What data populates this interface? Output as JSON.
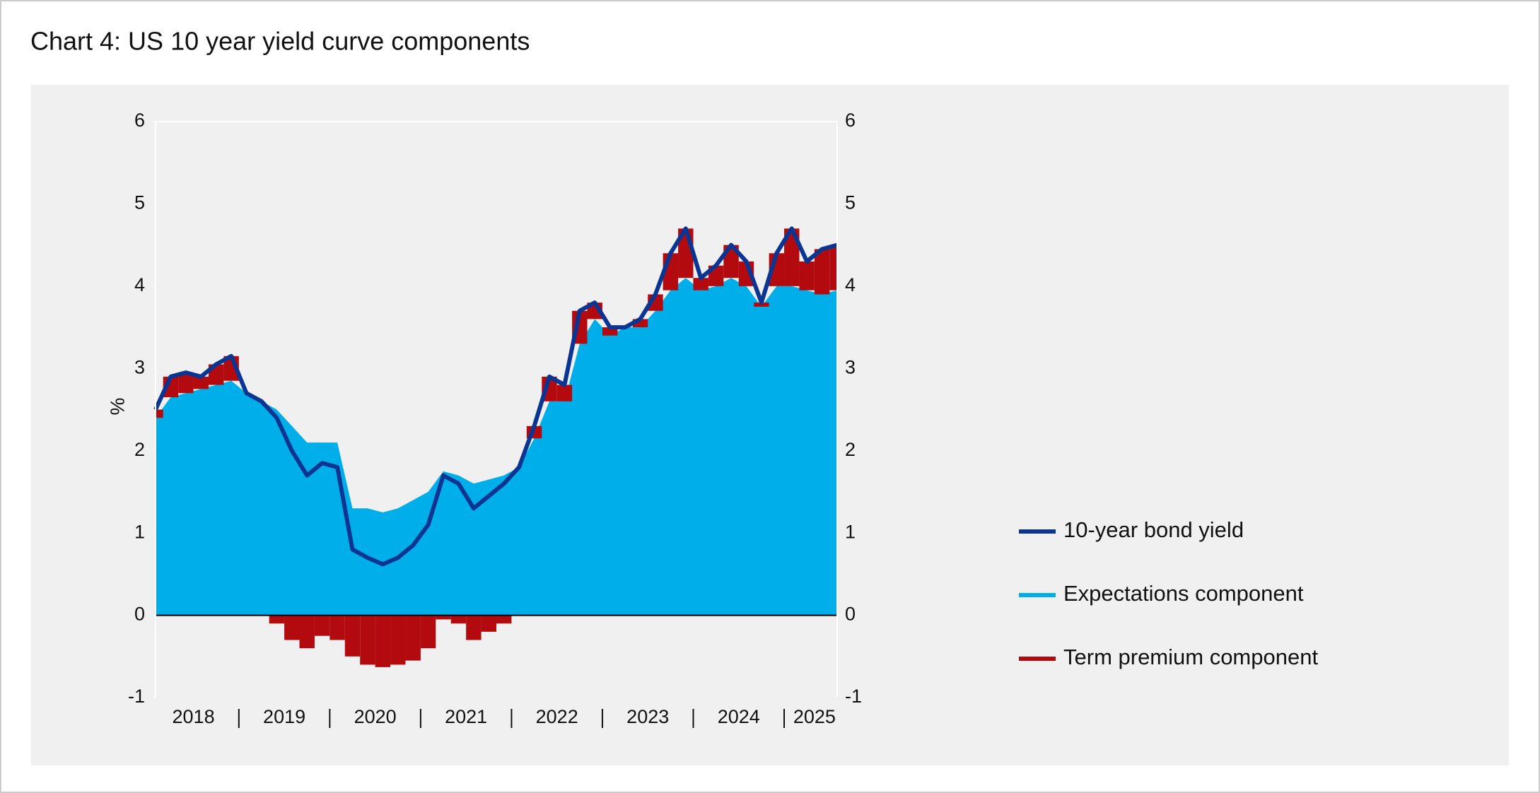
{
  "chart_data": {
    "type": "area",
    "title": "Chart 4: US 10 year yield curve components",
    "y_label": "%",
    "categories": [
      null,
      null,
      null,
      "2018",
      null,
      null,
      null,
      null,
      null,
      "2019",
      null,
      null,
      null,
      null,
      null,
      "2020",
      null,
      null,
      null,
      null,
      null,
      "2021",
      null,
      null,
      null,
      null,
      null,
      "2022",
      null,
      null,
      null,
      null,
      null,
      "2023",
      null,
      null,
      null,
      null,
      null,
      "2024",
      null,
      null,
      null,
      null,
      "2025",
      null
    ],
    "ylim": [
      -1,
      6
    ],
    "yticks": [
      -1,
      0,
      1,
      2,
      3,
      4,
      5,
      6
    ],
    "grid": false,
    "legend": "right",
    "series": [
      {
        "name": "10-year bond yield",
        "type": "line",
        "color": "#0a3592",
        "values": [
          2.5,
          2.9,
          2.95,
          2.9,
          3.05,
          3.15,
          2.7,
          2.6,
          2.4,
          2.0,
          1.7,
          1.85,
          1.8,
          0.8,
          0.7,
          0.62,
          0.7,
          0.85,
          1.1,
          1.7,
          1.6,
          1.3,
          1.45,
          1.6,
          1.8,
          2.3,
          2.9,
          2.8,
          3.7,
          3.8,
          3.5,
          3.5,
          3.6,
          3.9,
          4.4,
          4.7,
          4.1,
          4.25,
          4.5,
          4.3,
          3.8,
          4.4,
          4.7,
          4.3,
          4.45,
          4.5
        ]
      },
      {
        "name": "Expectations component",
        "type": "area",
        "color": "#00aeea",
        "values": [
          2.4,
          2.65,
          2.7,
          2.75,
          2.8,
          2.85,
          2.7,
          2.6,
          2.5,
          2.3,
          2.1,
          2.1,
          2.1,
          1.3,
          1.3,
          1.25,
          1.3,
          1.4,
          1.5,
          1.75,
          1.7,
          1.6,
          1.65,
          1.7,
          1.8,
          2.15,
          2.6,
          2.6,
          3.3,
          3.6,
          3.4,
          3.5,
          3.5,
          3.7,
          3.95,
          4.1,
          3.95,
          4.0,
          4.1,
          4.0,
          3.75,
          4.0,
          4.0,
          3.95,
          3.9,
          3.95
        ]
      },
      {
        "name": "Term premium component",
        "type": "bar",
        "color": "#b20a0f",
        "values": [
          0.1,
          0.25,
          0.25,
          0.15,
          0.25,
          0.3,
          0.0,
          0.0,
          -0.1,
          -0.3,
          -0.4,
          -0.25,
          -0.3,
          -0.5,
          -0.6,
          -0.63,
          -0.6,
          -0.55,
          -0.4,
          -0.05,
          -0.1,
          -0.3,
          -0.2,
          -0.1,
          0.0,
          0.15,
          0.3,
          0.2,
          0.4,
          0.2,
          0.1,
          0.0,
          0.1,
          0.2,
          0.45,
          0.6,
          0.15,
          0.25,
          0.4,
          0.3,
          0.05,
          0.4,
          0.7,
          0.35,
          0.55,
          0.55
        ]
      }
    ]
  }
}
